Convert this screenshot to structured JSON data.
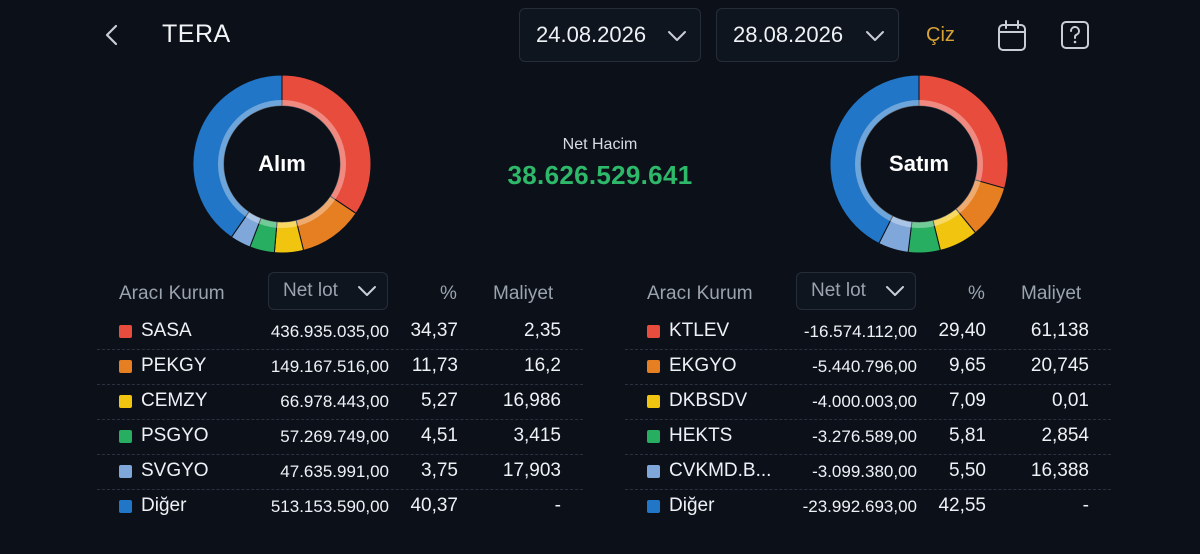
{
  "header": {
    "title": "TERA",
    "date_start": "24.08.2026",
    "date_end": "28.08.2026",
    "draw_label": "Çiz"
  },
  "summary": {
    "buy_label": "Alım",
    "sell_label": "Satım",
    "net_label": "Net Hacim",
    "net_value": "38.626.529.641"
  },
  "colors": {
    "series": [
      "#e84c3d",
      "#e67e22",
      "#f1c40f",
      "#27ae60",
      "#7fa7d9",
      "#2176c7"
    ],
    "accent": "#d9a234",
    "net_value": "#2eb86a"
  },
  "buy_table": {
    "col_broker": "Aracı Kurum",
    "col_sort": "Net lot",
    "col_pct": "%",
    "col_cost": "Maliyet",
    "rows": [
      {
        "name": "SASA",
        "lot": "436.935.035,00",
        "pct": "34,37",
        "cost": "2,35",
        "share": 34.37
      },
      {
        "name": "PEKGY",
        "lot": "149.167.516,00",
        "pct": "11,73",
        "cost": "16,2",
        "share": 11.73
      },
      {
        "name": "CEMZY",
        "lot": "66.978.443,00",
        "pct": "5,27",
        "cost": "16,986",
        "share": 5.27
      },
      {
        "name": "PSGYO",
        "lot": "57.269.749,00",
        "pct": "4,51",
        "cost": "3,415",
        "share": 4.51
      },
      {
        "name": "SVGYO",
        "lot": "47.635.991,00",
        "pct": "3,75",
        "cost": "17,903",
        "share": 3.75
      },
      {
        "name": "Diğer",
        "lot": "513.153.590,00",
        "pct": "40,37",
        "cost": "-",
        "share": 40.37
      }
    ]
  },
  "sell_table": {
    "col_broker": "Aracı Kurum",
    "col_sort": "Net lot",
    "col_pct": "%",
    "col_cost": "Maliyet",
    "rows": [
      {
        "name": "KTLEV",
        "lot": "-16.574.112,00",
        "pct": "29,40",
        "cost": "61,138",
        "share": 29.4
      },
      {
        "name": "EKGYO",
        "lot": "-5.440.796,00",
        "pct": "9,65",
        "cost": "20,745",
        "share": 9.65
      },
      {
        "name": "DKBSDV",
        "lot": "-4.000.003,00",
        "pct": "7,09",
        "cost": "0,01",
        "share": 7.09
      },
      {
        "name": "HEKTS",
        "lot": "-3.276.589,00",
        "pct": "5,81",
        "cost": "2,854",
        "share": 5.81
      },
      {
        "name": "CVKMD.B...",
        "lot": "-3.099.380,00",
        "pct": "5,50",
        "cost": "16,388",
        "share": 5.5
      },
      {
        "name": "Diğer",
        "lot": "-23.992.693,00",
        "pct": "42,55",
        "cost": "-",
        "share": 42.55
      }
    ]
  }
}
